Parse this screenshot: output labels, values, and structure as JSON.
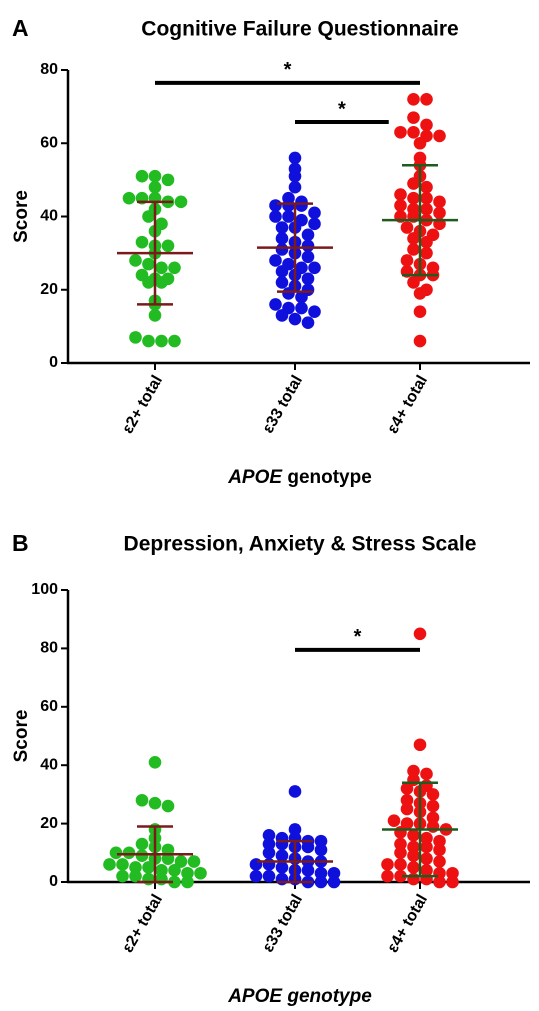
{
  "chart_data": [
    {
      "type": "dotplot",
      "label": "A",
      "title": "Cognitive Failure Questionnaire",
      "ylabel": "Score",
      "xlabel": [
        "APOE",
        " genotype"
      ],
      "xlabel_all_italic": false,
      "categories": [
        "ε2+ total",
        "ε33 total",
        "ε4+ total"
      ],
      "ylim": [
        0,
        80
      ],
      "yticks": [
        0,
        20,
        40,
        60,
        80
      ],
      "groups": [
        {
          "color": "#22bb22",
          "bar_color": "#7a1a1a",
          "mean": 30,
          "sd": 14,
          "values": [
            51,
            51,
            50,
            48,
            45,
            45,
            45,
            44,
            44,
            42,
            40,
            38,
            36,
            33,
            32,
            32,
            30,
            28,
            27,
            26,
            26,
            24,
            23,
            23,
            22,
            22,
            17,
            16,
            13,
            7,
            6,
            6,
            6
          ]
        },
        {
          "color": "#1010dd",
          "bar_color": "#7a1a1a",
          "mean": 31.5,
          "sd": 12,
          "values": [
            56,
            53,
            51,
            48,
            45,
            44,
            43,
            43,
            43,
            41,
            40,
            40,
            39,
            38,
            37,
            37,
            35,
            34,
            33,
            32,
            31,
            30,
            29,
            28,
            27,
            26,
            26,
            25,
            24,
            23,
            22,
            21,
            20,
            19,
            18,
            16,
            15,
            15,
            14,
            13,
            12,
            11
          ]
        },
        {
          "color": "#ee1111",
          "bar_color": "#1f5a1f",
          "mean": 39,
          "sd": 15,
          "values": [
            72,
            72,
            67,
            65,
            63,
            63,
            62,
            62,
            60,
            56,
            54,
            51,
            49,
            48,
            46,
            45,
            45,
            44,
            43,
            42,
            42,
            41,
            40,
            40,
            39,
            38,
            37,
            36,
            35,
            34,
            33,
            31,
            30,
            28,
            27,
            26,
            25,
            24,
            24,
            22,
            20,
            19,
            14,
            6
          ]
        }
      ],
      "significance": [
        {
          "text": "*",
          "x": [
            0,
            2
          ],
          "y": 76.5
        },
        {
          "text": "*",
          "x": [
            1,
            1.75
          ],
          "y": 65.8
        }
      ]
    },
    {
      "type": "dotplot",
      "label": "B",
      "title": "Depression, Anxiety & Stress Scale",
      "ylabel": "Score",
      "xlabel": [
        "APOE",
        " genotype"
      ],
      "xlabel_all_italic": true,
      "categories": [
        "ε2+ total",
        "ε33 total",
        "ε4+ total"
      ],
      "ylim": [
        0,
        100
      ],
      "yticks": [
        0,
        20,
        40,
        60,
        80,
        100
      ],
      "groups": [
        {
          "color": "#22bb22",
          "bar_color": "#7a1a1a",
          "mean": 9.5,
          "sd": 9.5,
          "values": [
            41,
            28,
            27,
            26,
            18,
            15,
            13,
            12,
            11,
            10,
            10,
            9,
            8,
            8,
            7,
            7,
            6,
            6,
            5,
            5,
            4,
            4,
            3,
            3,
            2,
            2,
            1,
            1,
            0,
            0
          ]
        },
        {
          "color": "#1010dd",
          "bar_color": "#7a1a1a",
          "mean": 7,
          "sd": 7,
          "values": [
            31,
            18,
            16,
            15,
            15,
            14,
            14,
            13,
            13,
            12,
            12,
            11,
            10,
            9,
            8,
            7,
            7,
            6,
            6,
            5,
            4,
            4,
            3,
            3,
            2,
            2,
            1,
            1,
            0,
            0,
            0
          ]
        },
        {
          "color": "#ee1111",
          "bar_color": "#1f5a1f",
          "mean": 18,
          "sd": 16,
          "values": [
            85,
            47,
            38,
            37,
            35,
            33,
            32,
            31,
            30,
            28,
            27,
            26,
            25,
            24,
            22,
            21,
            20,
            20,
            19,
            18,
            17,
            16,
            15,
            14,
            13,
            12,
            12,
            11,
            10,
            9,
            8,
            7,
            6,
            6,
            5,
            4,
            3,
            3,
            2,
            2,
            1,
            1,
            0,
            0
          ]
        }
      ],
      "significance": [
        {
          "text": "*",
          "x": [
            1,
            2
          ],
          "y": 79.5
        }
      ]
    }
  ]
}
